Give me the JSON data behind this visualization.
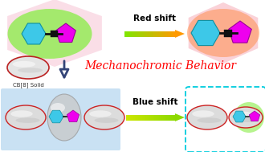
{
  "title": "Mechanochromic Behavior",
  "title_color": "#FF0000",
  "title_fontsize": 10,
  "red_shift_label": "Red shift",
  "blue_shift_label": "Blue shift",
  "cb8_label": "CB[8] Solid",
  "bg_color": "#FFFFFF",
  "hexagon_blue": "#3DC8E8",
  "pentagon_magenta": "#EE00EE",
  "bond_black": "#111111",
  "top_left_glow_green": "#88EE44",
  "top_left_glow_pink": "#F8C8D8",
  "top_right_glow_orange": "#FF9050",
  "top_right_glow_pink": "#F8C0C8",
  "bottom_left_bg": "#B8D8F0",
  "bottom_right_border": "#00CCDD",
  "capsule_fill": "#DCDCDC",
  "capsule_edge": "#CC2222",
  "cb8_fill": "#E4E4E4",
  "cb8_edge": "#BB2222"
}
